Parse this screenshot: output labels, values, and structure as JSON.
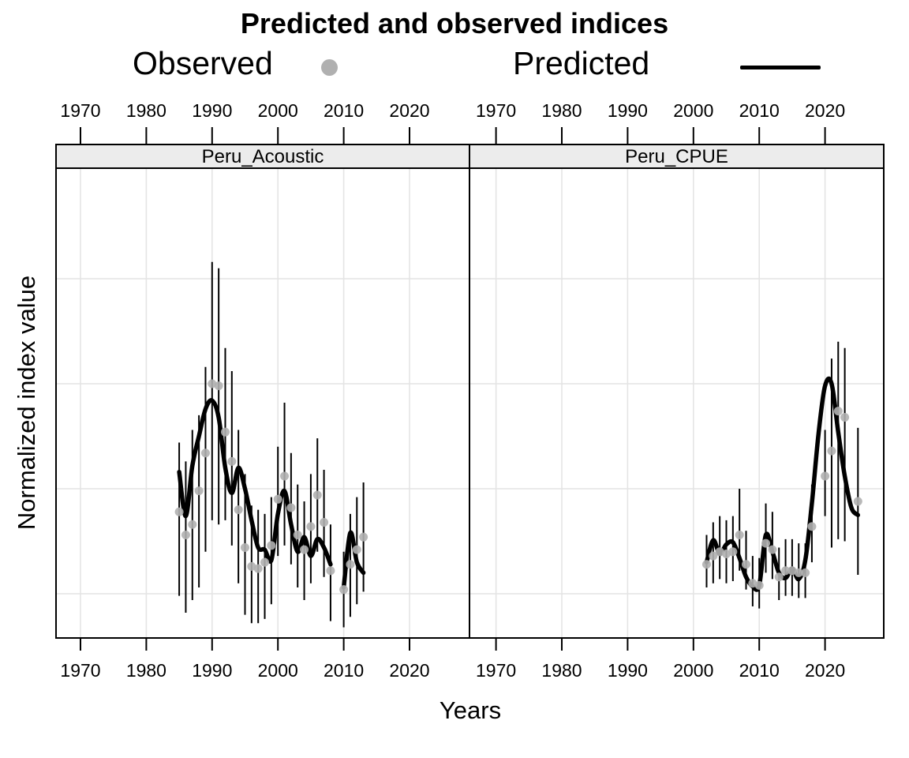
{
  "title": "Predicted and observed indices",
  "legend": {
    "observed_label": "Observed",
    "predicted_label": "Predicted"
  },
  "axes": {
    "x_label": "Years",
    "y_label": "Normalized index value",
    "x_ticks": [
      1970,
      1980,
      1990,
      2000,
      2010,
      2020
    ],
    "y_ticks": [
      0.5,
      1.0,
      1.5,
      2.0
    ],
    "y_tick_labels_shown": false,
    "x_range_per_panel": [
      1966.3,
      2028.8
    ],
    "y_range": [
      0.29,
      2.53
    ]
  },
  "colors": {
    "observed_point": "#b0b0b0",
    "predicted_line": "#000000",
    "error_bar": "#000000",
    "grid": "#e4e4e4",
    "strip_bg": "#ececec",
    "border": "#000000",
    "background": "#ffffff"
  },
  "chart_data": [
    {
      "type": "line+scatter",
      "panel_label": "Peru_Acoustic",
      "observed": {
        "years": [
          1985,
          1986,
          1987,
          1988,
          1989,
          1990,
          1991,
          1992,
          1993,
          1994,
          1995,
          1996,
          1997,
          1998,
          1999,
          2000,
          2001,
          2002,
          2003,
          2004,
          2005,
          2006,
          2007,
          2008,
          2010,
          2011,
          2012,
          2013
        ],
        "values": [
          0.89,
          0.78,
          0.83,
          0.99,
          1.17,
          1.5,
          1.49,
          1.27,
          1.13,
          0.9,
          0.72,
          0.63,
          0.62,
          0.65,
          0.73,
          0.95,
          1.06,
          0.91,
          0.78,
          0.71,
          0.82,
          0.97,
          0.84,
          0.61,
          0.52,
          0.64,
          0.71,
          0.77
        ],
        "ci_low": [
          0.49,
          0.41,
          0.47,
          0.53,
          0.7,
          0.85,
          0.83,
          0.85,
          0.73,
          0.55,
          0.4,
          0.36,
          0.36,
          0.38,
          0.45,
          0.68,
          0.73,
          0.64,
          0.53,
          0.47,
          0.55,
          0.7,
          0.58,
          0.37,
          0.34,
          0.39,
          0.45,
          0.51
        ],
        "ci_high": [
          1.22,
          1.13,
          1.28,
          1.35,
          1.58,
          2.08,
          2.05,
          1.67,
          1.56,
          1.28,
          1.07,
          0.92,
          0.9,
          0.88,
          0.96,
          1.2,
          1.41,
          1.17,
          1.02,
          0.94,
          1.07,
          1.24,
          1.09,
          0.83,
          0.7,
          0.88,
          0.96,
          1.03
        ]
      },
      "predicted": {
        "years": [
          1985,
          1986,
          1987,
          1988,
          1989,
          1990,
          1991,
          1992,
          1993,
          1994,
          1995,
          1996,
          1997,
          1998,
          1999,
          2000,
          2001,
          2002,
          2003,
          2004,
          2005,
          2006,
          2007,
          2008,
          2009,
          2010,
          2011,
          2012,
          2013
        ],
        "values": [
          1.08,
          0.87,
          1.11,
          1.25,
          1.38,
          1.42,
          1.34,
          1.1,
          0.98,
          1.1,
          1.0,
          0.85,
          0.72,
          0.71,
          0.66,
          0.88,
          0.99,
          0.83,
          0.7,
          0.77,
          0.68,
          0.76,
          0.72,
          0.64,
          null,
          0.53,
          0.79,
          0.65,
          0.6
        ]
      }
    },
    {
      "type": "line+scatter",
      "panel_label": "Peru_CPUE",
      "observed": {
        "years": [
          2002,
          2003,
          2004,
          2005,
          2006,
          2007,
          2008,
          2009,
          2010,
          2011,
          2012,
          2013,
          2014,
          2015,
          2016,
          2017,
          2018,
          2020,
          2021,
          2022,
          2023,
          2025
        ],
        "values": [
          0.64,
          0.68,
          0.7,
          0.69,
          0.7,
          0.78,
          0.64,
          0.55,
          0.54,
          0.74,
          0.71,
          0.58,
          0.61,
          0.61,
          0.6,
          0.6,
          0.82,
          1.06,
          1.18,
          1.37,
          1.34,
          0.94
        ],
        "ci_low": [
          0.53,
          0.55,
          0.57,
          0.55,
          0.56,
          0.61,
          0.52,
          0.44,
          0.43,
          0.6,
          0.57,
          0.47,
          0.49,
          0.49,
          0.48,
          0.48,
          0.65,
          0.87,
          0.72,
          0.76,
          0.75,
          0.59
        ],
        "ci_high": [
          0.78,
          0.84,
          0.87,
          0.85,
          0.87,
          1.0,
          0.8,
          0.68,
          0.67,
          0.93,
          0.89,
          0.72,
          0.76,
          0.76,
          0.74,
          0.74,
          1.02,
          1.28,
          1.62,
          1.7,
          1.67,
          1.29
        ]
      },
      "predicted": {
        "years": [
          2002,
          2003,
          2004,
          2005,
          2006,
          2007,
          2008,
          2009,
          2010,
          2011,
          2012,
          2013,
          2014,
          2015,
          2016,
          2017,
          2018,
          2019,
          2020,
          2021,
          2022,
          2023,
          2024,
          2025
        ],
        "values": [
          0.65,
          0.755,
          0.69,
          0.735,
          0.745,
          0.67,
          0.58,
          0.535,
          0.54,
          0.78,
          0.7,
          0.6,
          0.575,
          0.62,
          0.57,
          0.66,
          0.93,
          1.26,
          1.49,
          1.5,
          1.27,
          1.06,
          0.91,
          0.875
        ]
      }
    }
  ]
}
